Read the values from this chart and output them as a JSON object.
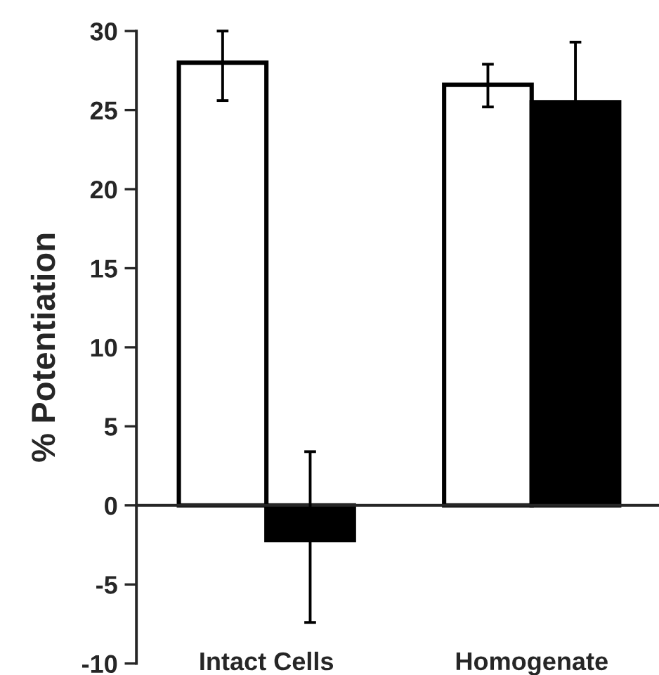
{
  "chart_data": {
    "type": "bar",
    "ylabel": "% Potentiation",
    "categories": [
      "Intact Cells",
      "Homogenate"
    ],
    "series": [
      {
        "color": "#ffffff",
        "values": [
          28.0,
          26.6
        ],
        "errors": [
          [
            25.6,
            30.0
          ],
          [
            25.2,
            27.9
          ]
        ]
      },
      {
        "color": "#000000",
        "values": [
          -2.2,
          25.5
        ],
        "errors": [
          [
            -7.4,
            3.4
          ],
          3.8
        ]
      }
    ],
    "ylim": [
      -10,
      30
    ],
    "yticks": [
      -10,
      -5,
      0,
      5,
      10,
      15,
      20,
      25,
      30
    ]
  }
}
